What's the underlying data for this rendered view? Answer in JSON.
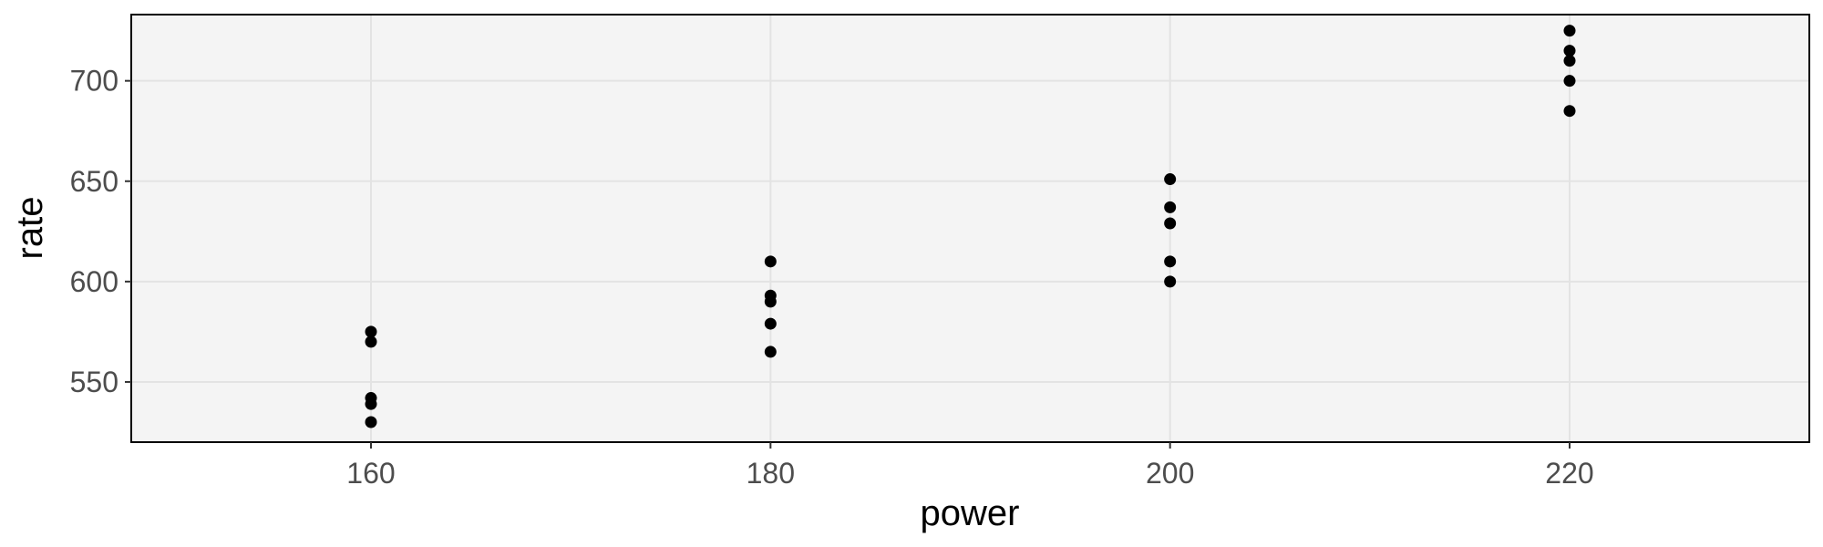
{
  "chart_data": {
    "type": "scatter",
    "title": "",
    "xlabel": "power",
    "ylabel": "rate",
    "xlim": [
      148,
      232
    ],
    "ylim": [
      520,
      733
    ],
    "x_ticks": [
      160,
      180,
      200,
      220
    ],
    "y_ticks": [
      550,
      600,
      650,
      700
    ],
    "grid": true,
    "legend": "none",
    "points": [
      {
        "x": 160,
        "y": 575
      },
      {
        "x": 160,
        "y": 570
      },
      {
        "x": 160,
        "y": 542
      },
      {
        "x": 160,
        "y": 539
      },
      {
        "x": 160,
        "y": 530
      },
      {
        "x": 180,
        "y": 610
      },
      {
        "x": 180,
        "y": 593
      },
      {
        "x": 180,
        "y": 590
      },
      {
        "x": 180,
        "y": 579
      },
      {
        "x": 180,
        "y": 565
      },
      {
        "x": 200,
        "y": 651
      },
      {
        "x": 200,
        "y": 637
      },
      {
        "x": 200,
        "y": 629
      },
      {
        "x": 200,
        "y": 610
      },
      {
        "x": 200,
        "y": 600
      },
      {
        "x": 220,
        "y": 725
      },
      {
        "x": 220,
        "y": 715
      },
      {
        "x": 220,
        "y": 710
      },
      {
        "x": 220,
        "y": 700
      },
      {
        "x": 220,
        "y": 685
      }
    ],
    "colors": {
      "panel_background": "#f4f4f4",
      "grid": "#e3e3e3",
      "point": "#000000",
      "panel_border": "#000000"
    }
  }
}
